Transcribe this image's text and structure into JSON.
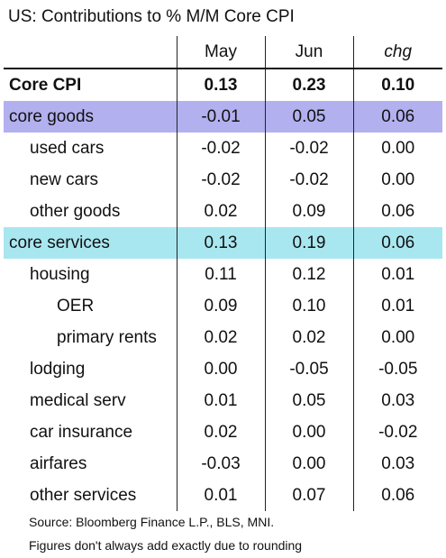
{
  "title": "US: Contributions to % M/M Core CPI",
  "colors": {
    "goods_bg": "#b3b0ef",
    "services_bg": "#a9e7f0"
  },
  "columns": {
    "label": "",
    "col1": "May",
    "col2": "Jun",
    "col3": "chg"
  },
  "rows": [
    {
      "label": "Core CPI",
      "may": "0.13",
      "jun": "0.23",
      "chg": "0.10"
    },
    {
      "label": "core goods",
      "may": "-0.01",
      "jun": "0.05",
      "chg": "0.06"
    },
    {
      "label": "used cars",
      "may": "-0.02",
      "jun": "-0.02",
      "chg": "0.00"
    },
    {
      "label": "new cars",
      "may": "-0.02",
      "jun": "-0.02",
      "chg": "0.00"
    },
    {
      "label": "other goods",
      "may": "0.02",
      "jun": "0.09",
      "chg": "0.06"
    },
    {
      "label": "core services",
      "may": "0.13",
      "jun": "0.19",
      "chg": "0.06"
    },
    {
      "label": "housing",
      "may": "0.11",
      "jun": "0.12",
      "chg": "0.01"
    },
    {
      "label": "OER",
      "may": "0.09",
      "jun": "0.10",
      "chg": "0.01"
    },
    {
      "label": "primary rents",
      "may": "0.02",
      "jun": "0.02",
      "chg": "0.00"
    },
    {
      "label": "lodging",
      "may": "0.00",
      "jun": "-0.05",
      "chg": "-0.05"
    },
    {
      "label": "medical serv",
      "may": "0.01",
      "jun": "0.05",
      "chg": "0.03"
    },
    {
      "label": "car insurance",
      "may": "0.02",
      "jun": "0.00",
      "chg": "-0.02"
    },
    {
      "label": "airfares",
      "may": "-0.03",
      "jun": "0.00",
      "chg": "0.03"
    },
    {
      "label": "other services",
      "may": "0.01",
      "jun": "0.07",
      "chg": "0.06"
    }
  ],
  "footnotes": {
    "source": "Source: Bloomberg Finance L.P., BLS, MNI.",
    "rounding": "Figures don't always add exactly due to rounding"
  }
}
